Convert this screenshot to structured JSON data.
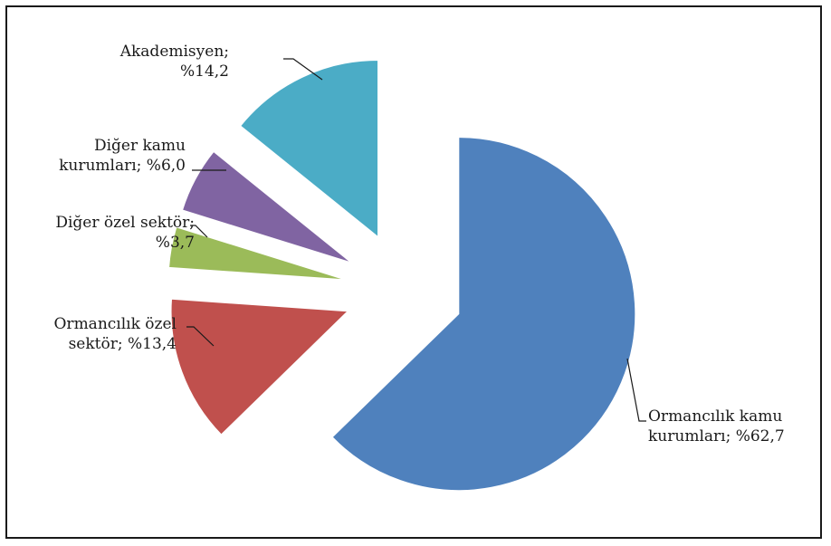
{
  "chart_data": {
    "type": "pie",
    "title": "",
    "exploded": true,
    "legend": "none",
    "slices": [
      {
        "name": "Ormancılık kamu kurumları",
        "value": 62.7,
        "label_line1": "Ormancılık kamu",
        "label_line2": "kurumları; %62,7",
        "color": "#4F81BD"
      },
      {
        "name": "Ormancılık özel sektör",
        "value": 13.4,
        "label_line1": "Ormancılık özel",
        "label_line2": "sektör; %13,4",
        "color": "#C0504D"
      },
      {
        "name": "Diğer özel sektör",
        "value": 3.7,
        "label_line1": "Diğer özel sektör;",
        "label_line2": "%3,7",
        "color": "#9BBB59"
      },
      {
        "name": "Diğer kamu kurumları",
        "value": 6.0,
        "label_line1": "Diğer kamu",
        "label_line2": "kurumları; %6,0",
        "color": "#8064A2"
      },
      {
        "name": "Akademisyen",
        "value": 14.2,
        "label_line1": "Akademisyen;",
        "label_line2": "%14,2",
        "color": "#4BACC6"
      }
    ]
  }
}
